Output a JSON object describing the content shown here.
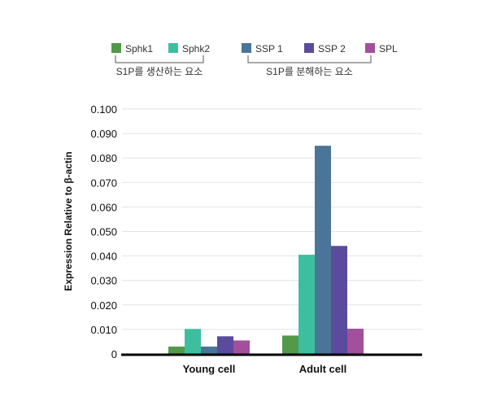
{
  "chart_data": {
    "type": "bar",
    "categories": [
      "Young cell",
      "Adult cell"
    ],
    "series": [
      {
        "name": "Sphk1",
        "color": "#52994a",
        "values": [
          0.003,
          0.0075
        ]
      },
      {
        "name": "Sphk2",
        "color": "#3dbf9f",
        "values": [
          0.0102,
          0.0405
        ]
      },
      {
        "name": "SSP 1",
        "color": "#4a7598",
        "values": [
          0.003,
          0.085
        ]
      },
      {
        "name": "SSP 2",
        "color": "#5b4b9c",
        "values": [
          0.0072,
          0.0441
        ]
      },
      {
        "name": "SPL",
        "color": "#a24f9c",
        "values": [
          0.0055,
          0.0103
        ]
      }
    ],
    "legend_groups": [
      {
        "label": "S1P를 생산하는 요소",
        "members": [
          "Sphk1",
          "Sphk2"
        ]
      },
      {
        "label": "S1P를 분해하는 요소",
        "members": [
          "SSP 1",
          "SSP 2",
          "SPL"
        ]
      }
    ],
    "ylabel": "Expression Relative to β-actin",
    "ylim": [
      0,
      0.1
    ],
    "yticks": [
      "0",
      "0.010",
      "0.020",
      "0.030",
      "0.040",
      "0.050",
      "0.060",
      "0.070",
      "0.080",
      "0.090",
      "0.100"
    ],
    "grid": true,
    "legend_position": "top"
  }
}
